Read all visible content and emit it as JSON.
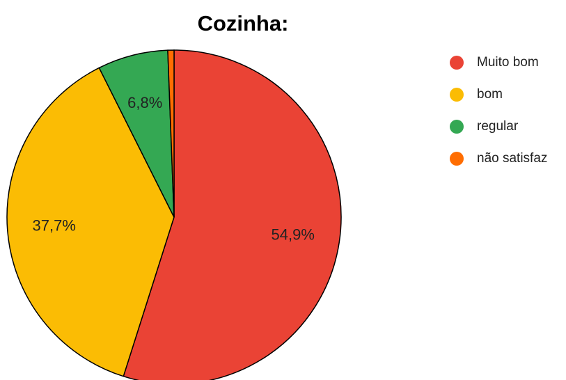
{
  "chart_data": {
    "type": "pie",
    "title": "Cozinha:",
    "categories": [
      "Muito bom",
      "bom",
      "regular",
      "não satisfaz"
    ],
    "values": [
      54.9,
      37.7,
      6.8,
      0.6
    ],
    "value_labels": [
      "54,9%",
      "37,7%",
      "6,8%",
      null
    ],
    "colors": [
      "#ea4335",
      "#fbbc04",
      "#34a853",
      "#ff6d01"
    ],
    "legend": "right"
  }
}
